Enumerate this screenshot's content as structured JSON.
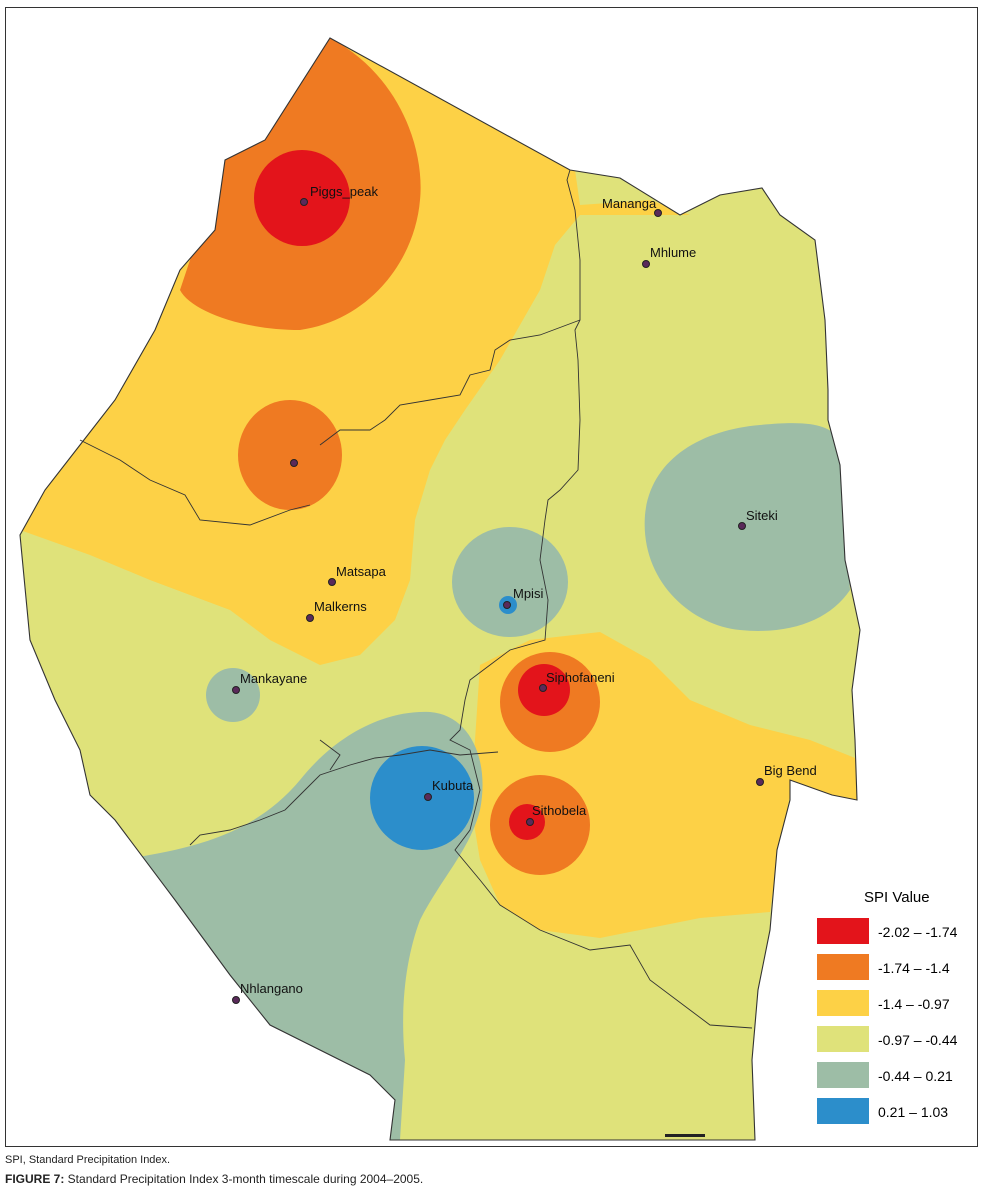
{
  "map": {
    "legend_title": "SPI Value",
    "classes": [
      {
        "label": "-2.02 – -1.74",
        "color": "#e3141b"
      },
      {
        "label": "-1.74 – -1.4",
        "color": "#ef7a22"
      },
      {
        "label": "-1.4 – -0.97",
        "color": "#fdd146"
      },
      {
        "label": "-0.97 – -0.44",
        "color": "#dfe27a"
      },
      {
        "label": "-0.44 – 0.21",
        "color": "#9dbda6"
      },
      {
        "label": "0.21 – 1.03",
        "color": "#2c8ecb"
      }
    ],
    "towns": [
      {
        "name": "Piggs_peak"
      },
      {
        "name": "Mananga"
      },
      {
        "name": "Mhlume"
      },
      {
        "name": "Siteki"
      },
      {
        "name": "Matsapa"
      },
      {
        "name": "Malkerns"
      },
      {
        "name": "Mpisi"
      },
      {
        "name": "Mankayane"
      },
      {
        "name": "Siphofaneni"
      },
      {
        "name": "Kubuta"
      },
      {
        "name": "Sithobela"
      },
      {
        "name": "Big Bend"
      },
      {
        "name": "Nhlangano"
      },
      {
        "name": ""
      }
    ]
  },
  "caption": {
    "abbrev": "SPI, Standard Precipitation Index.",
    "figure_label": "FIGURE 7:",
    "figure_text": " Standard Precipitation Index 3-month timescale during 2004–2005."
  }
}
